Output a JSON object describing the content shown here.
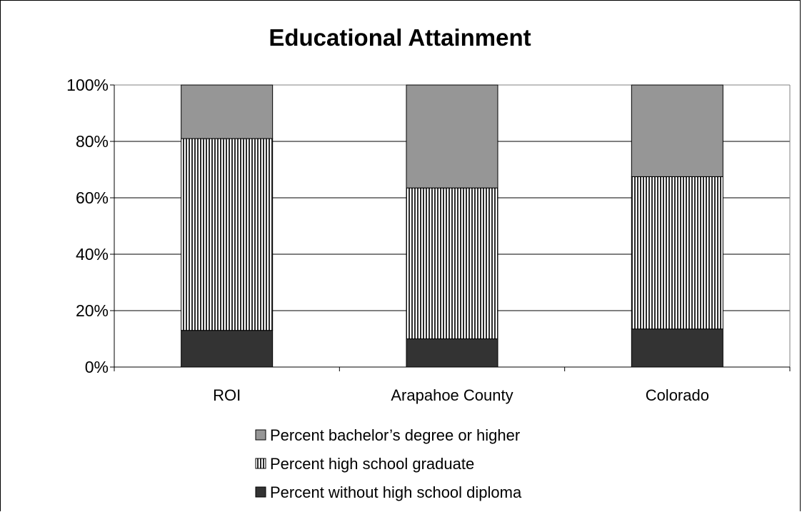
{
  "chart_data": {
    "type": "bar",
    "stacked": true,
    "title": "Educational Attainment",
    "categories": [
      "ROI",
      "Arapahoe County",
      "Colorado"
    ],
    "y_ticks": [
      "0%",
      "20%",
      "40%",
      "60%",
      "80%",
      "100%"
    ],
    "ylim": [
      0,
      100
    ],
    "grid": true,
    "legend_position": "bottom",
    "series": [
      {
        "name": "Percent without high school diploma",
        "values": [
          13,
          10,
          13.5
        ],
        "color": "#333333",
        "pattern": "solid"
      },
      {
        "name": "Percent high school graduate",
        "values": [
          68,
          53.5,
          54
        ],
        "color": "#2b2b2b",
        "pattern": "vertical-stripes"
      },
      {
        "name": "Percent bachelor’s degree or higher",
        "values": [
          19,
          36.5,
          32.5
        ],
        "color": "#969696",
        "pattern": "solid"
      }
    ],
    "legend_order": [
      "Percent bachelor’s degree or higher",
      "Percent high school graduate",
      "Percent without high school diploma"
    ]
  }
}
